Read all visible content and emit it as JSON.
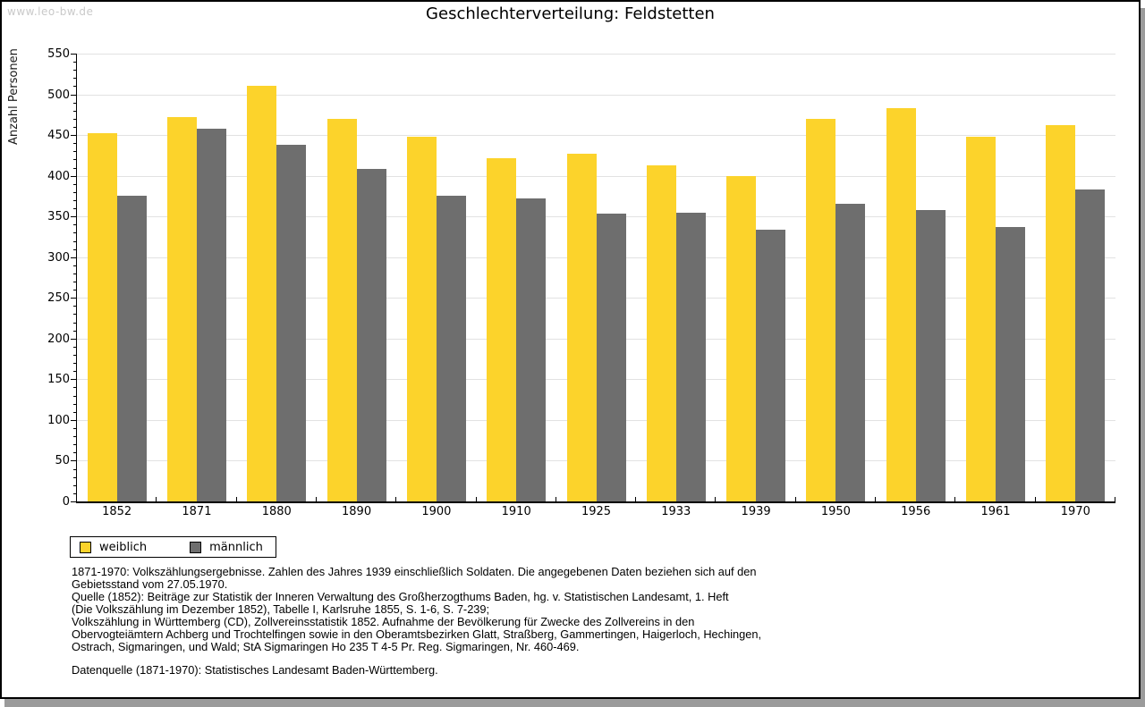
{
  "watermark": "www.leo-bw.de",
  "title": "Geschlechterverteilung: Feldstetten",
  "legend": [
    {
      "label": "weiblich",
      "color": "#fcd32b"
    },
    {
      "label": "männlich",
      "color": "#6e6e6e"
    }
  ],
  "notes_lines": [
    "1871-1970: Volkszählungsergebnisse. Zahlen des Jahres 1939 einschließlich Soldaten. Die angegebenen Daten beziehen sich auf den",
    "Gebietsstand vom 27.05.1970.",
    "Quelle (1852): Beiträge zur Statistik der Inneren Verwaltung des Großherzogthums Baden, hg. v. Statistischen Landesamt, 1. Heft",
    "(Die Volkszählung im Dezember 1852), Tabelle I, Karlsruhe 1855, S. 1-6, S. 7-239;",
    "Volkszählung in Württemberg (CD), Zollvereinsstatistik 1852. Aufnahme der Bevölkerung für Zwecke des Zollvereins in den",
    "Obervogteiämtern Achberg und Trochtelfingen sowie in den Oberamtsbezirken Glatt, Straßberg, Gammertingen, Haigerloch, Hechingen,",
    "Ostrach, Sigmaringen, und Wald; StA Sigmaringen Ho 235 T 4-5 Pr. Reg. Sigmaringen, Nr. 460-469."
  ],
  "source_line": "Datenquelle (1871-1970): Statistisches Landesamt Baden-Württemberg.",
  "chart_data": {
    "type": "bar",
    "title": "Geschlechterverteilung: Feldstetten",
    "xlabel": "",
    "ylabel": "Anzahl Personen",
    "ylim": [
      0,
      550
    ],
    "ytick_step": 50,
    "ytick_minor_step": 10,
    "grid": true,
    "legend_position": "bottom-left",
    "categories": [
      "1852",
      "1871",
      "1880",
      "1890",
      "1900",
      "1910",
      "1925",
      "1933",
      "1939",
      "1950",
      "1956",
      "1961",
      "1970"
    ],
    "series": [
      {
        "name": "weiblich",
        "color": "#fcd32b",
        "values": [
          452,
          472,
          511,
          470,
          448,
          422,
          427,
          413,
          400,
          470,
          483,
          448,
          462
        ]
      },
      {
        "name": "männlich",
        "color": "#6e6e6e",
        "values": [
          376,
          458,
          438,
          408,
          375,
          372,
          354,
          355,
          334,
          366,
          358,
          337,
          383
        ]
      }
    ]
  }
}
